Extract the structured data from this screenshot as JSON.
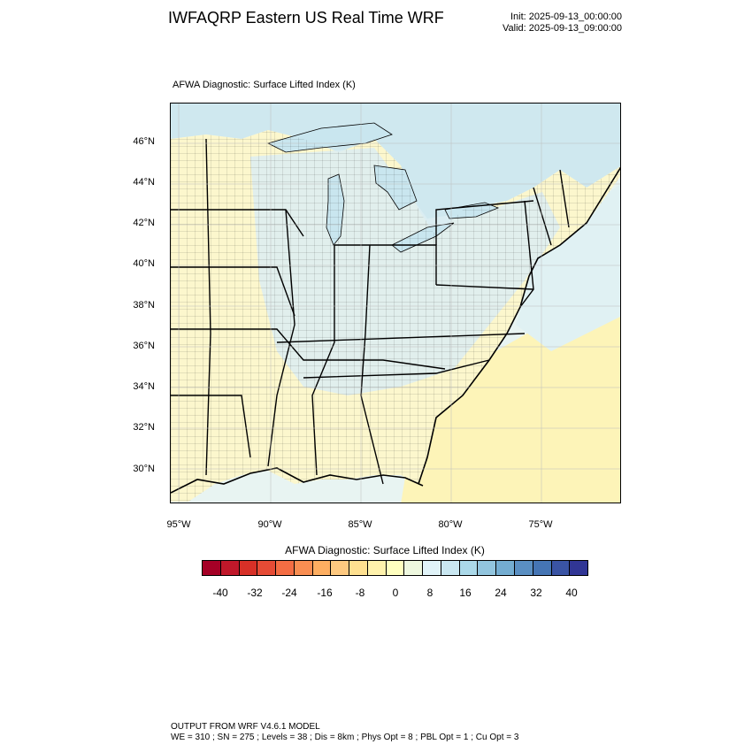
{
  "header": {
    "title": "IWFAQRP Eastern US Real Time WRF",
    "init": "Init: 2025-09-13_00:00:00",
    "valid": "Valid: 2025-09-13_09:00:00"
  },
  "map": {
    "subtitle": "AFWA Diagnostic: Surface Lifted Index   (K)",
    "lat_labels": [
      "46°N",
      "44°N",
      "42°N",
      "40°N",
      "38°N",
      "36°N",
      "34°N",
      "32°N",
      "30°N"
    ],
    "lon_labels": [
      "95°W",
      "90°W",
      "85°W",
      "80°W",
      "75°W"
    ],
    "colors": {
      "land_light_yellow": "#fdf8c8",
      "land_light_blue": "#dcedf2",
      "water_great_lakes": "#c9e6ef",
      "ocean_south": "#fdf4b8",
      "boundary": "#000000"
    }
  },
  "colorbar": {
    "title": "AFWA Diagnostic: Surface Lifted Index  (K)",
    "labels": [
      "-40",
      "-32",
      "-24",
      "-16",
      "-8",
      "0",
      "8",
      "16",
      "24",
      "32",
      "40"
    ],
    "colors": [
      "#a50026",
      "#c0182a",
      "#d73027",
      "#e64b35",
      "#f46d43",
      "#f98e52",
      "#fdae61",
      "#fec980",
      "#fee090",
      "#fff2ac",
      "#ffffbf",
      "#eef8df",
      "#e0f3f8",
      "#c9e7f1",
      "#abd9e9",
      "#92c5de",
      "#74add1",
      "#5a8fc2",
      "#4575b4",
      "#3a54a4",
      "#313695"
    ]
  },
  "footer": {
    "line1": "OUTPUT FROM WRF V4.6.1 MODEL",
    "line2": "WE = 310 ; SN = 275 ; Levels = 38 ; Dis = 8km ; Phys Opt = 8 ; PBL Opt = 1 ; Cu Opt = 3"
  }
}
